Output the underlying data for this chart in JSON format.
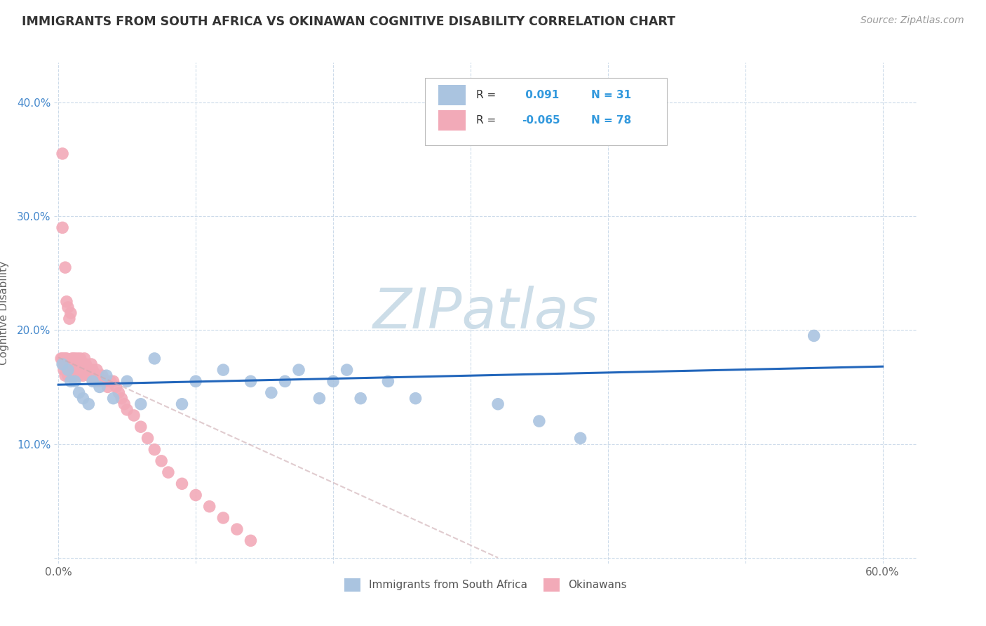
{
  "title": "IMMIGRANTS FROM SOUTH AFRICA VS OKINAWAN COGNITIVE DISABILITY CORRELATION CHART",
  "source_text": "Source: ZipAtlas.com",
  "ylabel": "Cognitive Disability",
  "r_blue": 0.091,
  "n_blue": 31,
  "r_pink": -0.065,
  "n_pink": 78,
  "blue_color": "#aac4e0",
  "pink_color": "#f2aab8",
  "blue_line_color": "#2266bb",
  "pink_line_color": "#ccaab0",
  "title_color": "#333333",
  "r_value_color": "#3399dd",
  "watermark_color": "#ccdde8",
  "xlim_min": -0.003,
  "xlim_max": 0.625,
  "ylim_min": -0.005,
  "ylim_max": 0.435,
  "blue_x": [
    0.003,
    0.007,
    0.009,
    0.012,
    0.015,
    0.018,
    0.022,
    0.025,
    0.03,
    0.035,
    0.04,
    0.05,
    0.06,
    0.07,
    0.09,
    0.1,
    0.12,
    0.14,
    0.155,
    0.165,
    0.175,
    0.19,
    0.2,
    0.21,
    0.22,
    0.24,
    0.26,
    0.32,
    0.35,
    0.38,
    0.55
  ],
  "blue_y": [
    0.17,
    0.165,
    0.155,
    0.155,
    0.145,
    0.14,
    0.135,
    0.155,
    0.15,
    0.16,
    0.14,
    0.155,
    0.135,
    0.175,
    0.135,
    0.155,
    0.165,
    0.155,
    0.145,
    0.155,
    0.165,
    0.14,
    0.155,
    0.165,
    0.14,
    0.155,
    0.14,
    0.135,
    0.12,
    0.105,
    0.195
  ],
  "pink_x": [
    0.002,
    0.003,
    0.003,
    0.004,
    0.004,
    0.005,
    0.005,
    0.006,
    0.006,
    0.007,
    0.007,
    0.008,
    0.008,
    0.009,
    0.009,
    0.01,
    0.01,
    0.011,
    0.011,
    0.012,
    0.012,
    0.013,
    0.013,
    0.014,
    0.014,
    0.015,
    0.015,
    0.016,
    0.016,
    0.017,
    0.017,
    0.018,
    0.018,
    0.019,
    0.02,
    0.02,
    0.021,
    0.022,
    0.023,
    0.024,
    0.025,
    0.026,
    0.027,
    0.028,
    0.029,
    0.03,
    0.032,
    0.034,
    0.036,
    0.038,
    0.04,
    0.042,
    0.044,
    0.046,
    0.048,
    0.05,
    0.055,
    0.06,
    0.065,
    0.07,
    0.075,
    0.08,
    0.09,
    0.1,
    0.11,
    0.12,
    0.13,
    0.14,
    0.003,
    0.005,
    0.007,
    0.009,
    0.004,
    0.008,
    0.006,
    0.012,
    0.015,
    0.018
  ],
  "pink_y": [
    0.175,
    0.355,
    0.175,
    0.17,
    0.165,
    0.16,
    0.175,
    0.165,
    0.175,
    0.165,
    0.16,
    0.17,
    0.16,
    0.165,
    0.17,
    0.175,
    0.16,
    0.165,
    0.175,
    0.17,
    0.16,
    0.165,
    0.17,
    0.165,
    0.175,
    0.16,
    0.165,
    0.17,
    0.175,
    0.165,
    0.17,
    0.165,
    0.16,
    0.175,
    0.165,
    0.17,
    0.165,
    0.16,
    0.165,
    0.17,
    0.165,
    0.16,
    0.155,
    0.165,
    0.16,
    0.155,
    0.16,
    0.155,
    0.15,
    0.155,
    0.155,
    0.15,
    0.145,
    0.14,
    0.135,
    0.13,
    0.125,
    0.115,
    0.105,
    0.095,
    0.085,
    0.075,
    0.065,
    0.055,
    0.045,
    0.035,
    0.025,
    0.015,
    0.29,
    0.255,
    0.22,
    0.215,
    0.175,
    0.21,
    0.225,
    0.175,
    0.165,
    0.165
  ],
  "blue_trend_x": [
    0.0,
    0.6
  ],
  "blue_trend_y": [
    0.152,
    0.168
  ],
  "pink_trend_x": [
    0.0,
    0.32
  ],
  "pink_trend_y": [
    0.176,
    0.0
  ]
}
